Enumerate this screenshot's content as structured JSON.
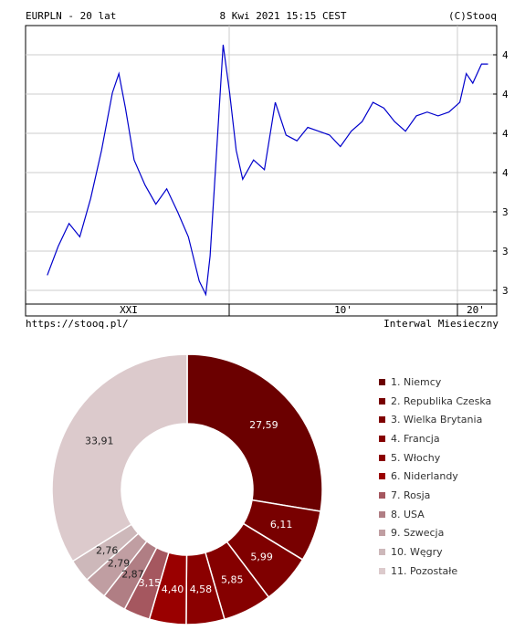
{
  "header": {
    "symbol_title": "EURPLN - 20 lat",
    "timestamp": "8 Kwi 2021 15:15 CEST",
    "copyright": "(C)Stooq",
    "url": "https://stooq.pl/",
    "interval": "Interwal Miesieczny"
  },
  "chart_data": [
    {
      "type": "line",
      "title": "EURPLN - 20 lat",
      "y_tick_labels": [
        "4",
        "4",
        "4",
        "4",
        "3",
        "3",
        "3"
      ],
      "x_tick_labels": [
        "XXI",
        "10'",
        "20'"
      ],
      "grid": true,
      "line_color": "#0000cc",
      "x": [
        2001,
        2001.5,
        2002,
        2002.5,
        2003,
        2003.5,
        2004,
        2004.3,
        2004.6,
        2005,
        2005.5,
        2006,
        2006.5,
        2007,
        2007.5,
        2008,
        2008.3,
        2008.5,
        2008.8,
        2009.1,
        2009.4,
        2009.7,
        2010,
        2010.5,
        2011,
        2011.5,
        2012,
        2012.5,
        2013,
        2013.5,
        2014,
        2014.5,
        2015,
        2015.5,
        2016,
        2016.5,
        2017,
        2017.5,
        2018,
        2018.5,
        2019,
        2019.5,
        2020,
        2020.3,
        2020.6,
        2021,
        2021.3
      ],
      "values": [
        3.45,
        3.6,
        3.72,
        3.65,
        3.85,
        4.1,
        4.4,
        4.5,
        4.32,
        4.05,
        3.92,
        3.82,
        3.9,
        3.78,
        3.65,
        3.42,
        3.35,
        3.55,
        4.1,
        4.65,
        4.4,
        4.1,
        3.95,
        4.05,
        4.0,
        4.35,
        4.18,
        4.15,
        4.22,
        4.2,
        4.18,
        4.12,
        4.2,
        4.25,
        4.35,
        4.32,
        4.25,
        4.2,
        4.28,
        4.3,
        4.28,
        4.3,
        4.35,
        4.5,
        4.45,
        4.55,
        4.55
      ]
    },
    {
      "type": "pie",
      "categories": [
        "1. Niemcy",
        "2. Republika Czeska",
        "3. Wielka Brytania",
        "4. Francja",
        "5. Włochy",
        "6. Niderlandy",
        "7. Rosja",
        "8. USA",
        "9. Szwecja",
        "10. Węgry",
        "11. Pozostałe"
      ],
      "values": [
        27.59,
        6.11,
        5.99,
        5.85,
        4.58,
        4.4,
        3.15,
        2.87,
        2.79,
        2.76,
        33.91
      ],
      "value_labels": [
        "27,59",
        "6,11",
        "5,99",
        "5,85",
        "4,58",
        "4,40",
        "3,15",
        "2,87",
        "2,79",
        "2,76",
        "33,91"
      ],
      "colors": [
        "#6b0000",
        "#780000",
        "#7f0000",
        "#850000",
        "#8b0000",
        "#9a0000",
        "#a5575f",
        "#b07e84",
        "#c09ea2",
        "#cdb8ba",
        "#dccacc"
      ],
      "legend_position": "right"
    }
  ]
}
